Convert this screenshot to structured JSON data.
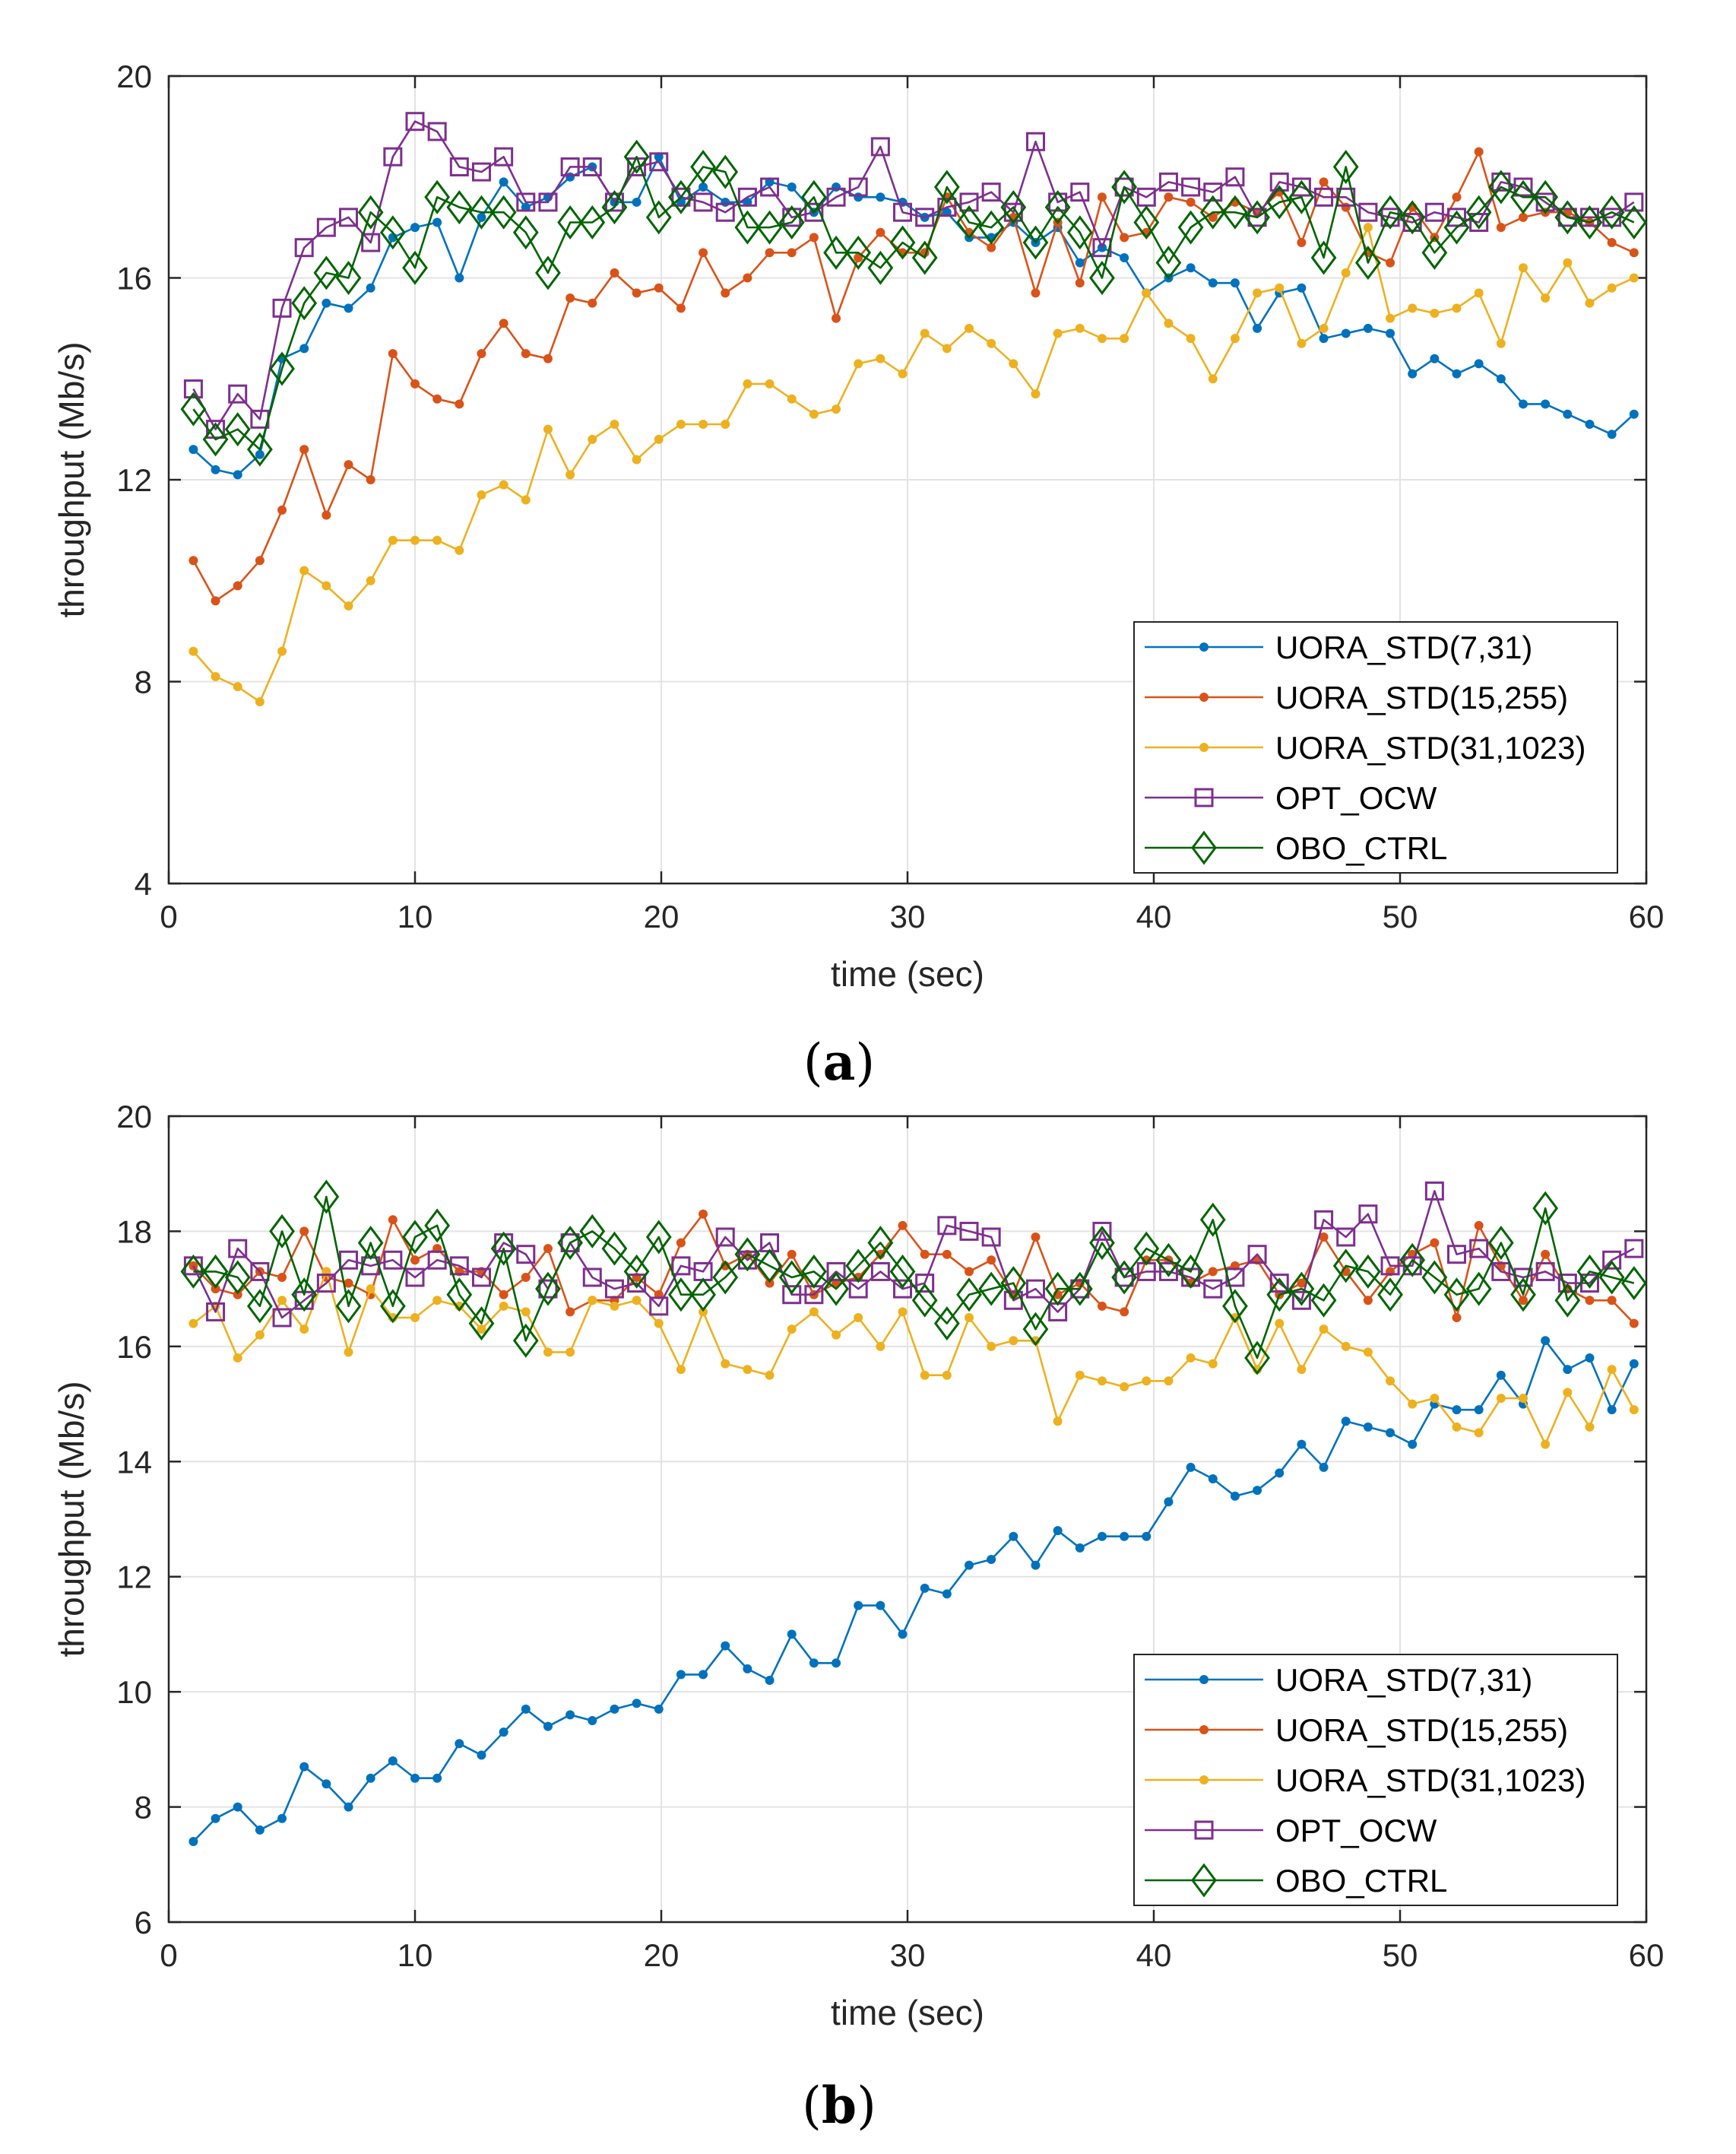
{
  "chart_data": [
    {
      "type": "line",
      "panel_label": "(a)",
      "panel_letter": "a",
      "xlabel": "time (sec)",
      "ylabel": "throughput (Mb/s)",
      "xlim": [
        0,
        60
      ],
      "ylim": [
        4,
        20
      ],
      "xticks": [
        "0",
        "10",
        "20",
        "30",
        "40",
        "50",
        "60"
      ],
      "yticks": [
        "4",
        "8",
        "12",
        "16",
        "20"
      ],
      "grid": true,
      "legend_position": "bottom-right",
      "x": [
        1,
        1.9,
        2.8,
        3.7,
        4.6,
        5.5,
        6.4,
        7.3,
        8.2,
        9.1,
        10,
        10.9,
        11.8,
        12.7,
        13.6,
        14.5,
        15.4,
        16.3,
        17.2,
        18.1,
        19,
        19.9,
        20.8,
        21.7,
        22.6,
        23.5,
        24.4,
        25.3,
        26.2,
        27.1,
        28,
        28.9,
        29.8,
        30.7,
        31.6,
        32.5,
        33.4,
        34.3,
        35.2,
        36.1,
        37,
        37.9,
        38.8,
        39.7,
        40.6,
        41.5,
        42.4,
        43.3,
        44.2,
        45.1,
        46,
        46.9,
        47.8,
        48.7,
        49.6,
        50.5,
        51.4,
        52.3,
        53.2,
        54.1,
        55,
        55.9,
        56.8,
        57.7,
        58.6,
        59.5
      ],
      "series": [
        {
          "name": "UORA_STD(7,31)",
          "color": "#0072bd",
          "marker": "dot",
          "values": [
            12.6,
            12.2,
            12.1,
            12.5,
            14.4,
            14.6,
            15.5,
            15.4,
            15.8,
            16.8,
            17.0,
            17.1,
            16.0,
            17.2,
            17.9,
            17.4,
            17.6,
            18.0,
            18.2,
            17.5,
            17.5,
            18.4,
            17.5,
            17.8,
            17.5,
            17.5,
            17.9,
            17.8,
            17.3,
            17.8,
            17.6,
            17.6,
            17.5,
            17.2,
            17.3,
            16.8,
            16.8,
            17.1,
            16.7,
            17.0,
            16.3,
            16.6,
            16.4,
            15.7,
            16.0,
            16.2,
            15.9,
            15.9,
            15.0,
            15.7,
            15.8,
            14.8,
            14.9,
            15.0,
            14.9,
            14.1,
            14.4,
            14.1,
            14.3,
            14.0,
            13.5,
            13.5,
            13.3,
            13.1,
            12.9,
            13.3
          ]
        },
        {
          "name": "UORA_STD(15,255)",
          "color": "#d95319",
          "marker": "dot",
          "values": [
            10.4,
            9.6,
            9.9,
            10.4,
            11.4,
            12.6,
            11.3,
            12.3,
            12.0,
            14.5,
            13.9,
            13.6,
            13.5,
            14.5,
            15.1,
            14.5,
            14.4,
            15.6,
            15.5,
            16.1,
            15.7,
            15.8,
            15.4,
            16.5,
            15.7,
            16.0,
            16.5,
            16.5,
            16.8,
            15.2,
            16.4,
            16.9,
            16.5,
            16.5,
            17.6,
            16.9,
            16.6,
            17.2,
            15.7,
            17.1,
            15.9,
            17.6,
            16.8,
            16.9,
            17.6,
            17.5,
            17.2,
            17.5,
            17.3,
            17.7,
            16.7,
            17.9,
            17.4,
            16.5,
            16.3,
            17.4,
            16.8,
            17.6,
            18.5,
            17.0,
            17.2,
            17.3,
            17.3,
            17.1,
            16.7,
            16.5
          ]
        },
        {
          "name": "UORA_STD(31,1023)",
          "color": "#edb120",
          "marker": "dot",
          "values": [
            8.6,
            8.1,
            7.9,
            7.6,
            8.6,
            10.2,
            9.9,
            9.5,
            10.0,
            10.8,
            10.8,
            10.8,
            10.6,
            11.7,
            11.9,
            11.6,
            13.0,
            12.1,
            12.8,
            13.1,
            12.4,
            12.8,
            13.1,
            13.1,
            13.1,
            13.9,
            13.9,
            13.6,
            13.3,
            13.4,
            14.3,
            14.4,
            14.1,
            14.9,
            14.6,
            15.0,
            14.7,
            14.3,
            13.7,
            14.9,
            15.0,
            14.8,
            14.8,
            15.7,
            15.1,
            14.8,
            14.0,
            14.8,
            15.7,
            15.8,
            14.7,
            15.0,
            16.1,
            17.0,
            15.2,
            15.4,
            15.3,
            15.4,
            15.7,
            14.7,
            16.2,
            15.6,
            16.3,
            15.5,
            15.8,
            16.0
          ]
        },
        {
          "name": "OPT_OCW",
          "color": "#7e2f8e",
          "marker": "square",
          "values": [
            13.8,
            13.0,
            13.7,
            13.2,
            15.4,
            16.6,
            17.0,
            17.2,
            16.7,
            18.4,
            19.1,
            18.9,
            18.2,
            18.1,
            18.4,
            17.5,
            17.5,
            18.2,
            18.2,
            17.5,
            18.2,
            18.3,
            17.6,
            17.5,
            17.3,
            17.6,
            17.8,
            17.2,
            17.3,
            17.6,
            17.8,
            18.6,
            17.3,
            17.2,
            17.4,
            17.5,
            17.7,
            17.3,
            18.7,
            17.5,
            17.7,
            16.6,
            17.8,
            17.6,
            17.9,
            17.8,
            17.7,
            18.0,
            17.2,
            17.9,
            17.8,
            17.6,
            17.6,
            17.3,
            17.2,
            17.1,
            17.3,
            17.2,
            17.1,
            17.9,
            17.8,
            17.5,
            17.2,
            17.2,
            17.2,
            17.5
          ]
        },
        {
          "name": "OBO_CTRL",
          "color": "#006400",
          "marker": "diamond",
          "values": [
            13.4,
            12.8,
            13.0,
            12.6,
            14.2,
            15.5,
            16.1,
            16.0,
            17.3,
            16.9,
            16.2,
            17.6,
            17.4,
            17.3,
            17.3,
            16.9,
            16.1,
            17.1,
            17.1,
            17.4,
            18.4,
            17.2,
            17.6,
            18.2,
            18.1,
            17.0,
            17.0,
            17.1,
            17.6,
            16.5,
            16.5,
            16.2,
            16.7,
            16.4,
            17.8,
            17.1,
            17.0,
            17.4,
            16.7,
            17.4,
            16.9,
            16.0,
            17.8,
            17.1,
            16.3,
            17.0,
            17.3,
            17.3,
            17.2,
            17.5,
            17.6,
            16.4,
            18.2,
            16.3,
            17.3,
            17.2,
            16.5,
            17.0,
            17.3,
            17.8,
            17.6,
            17.6,
            17.2,
            17.1,
            17.3,
            17.1
          ]
        }
      ],
      "legend": [
        "UORA_STD(7,31)",
        "UORA_STD(15,255)",
        "UORA_STD(31,1023)",
        "OPT_OCW",
        "OBO_CTRL"
      ]
    },
    {
      "type": "line",
      "panel_label": "(b)",
      "panel_letter": "b",
      "xlabel": "time (sec)",
      "ylabel": "throughput (Mb/s)",
      "xlim": [
        0,
        60
      ],
      "ylim": [
        6,
        20
      ],
      "xticks": [
        "0",
        "10",
        "20",
        "30",
        "40",
        "50",
        "60"
      ],
      "yticks": [
        "6",
        "8",
        "10",
        "12",
        "14",
        "16",
        "18",
        "20"
      ],
      "grid": true,
      "legend_position": "bottom-right",
      "x": [
        1,
        1.9,
        2.8,
        3.7,
        4.6,
        5.5,
        6.4,
        7.3,
        8.2,
        9.1,
        10,
        10.9,
        11.8,
        12.7,
        13.6,
        14.5,
        15.4,
        16.3,
        17.2,
        18.1,
        19,
        19.9,
        20.8,
        21.7,
        22.6,
        23.5,
        24.4,
        25.3,
        26.2,
        27.1,
        28,
        28.9,
        29.8,
        30.7,
        31.6,
        32.5,
        33.4,
        34.3,
        35.2,
        36.1,
        37,
        37.9,
        38.8,
        39.7,
        40.6,
        41.5,
        42.4,
        43.3,
        44.2,
        45.1,
        46,
        46.9,
        47.8,
        48.7,
        49.6,
        50.5,
        51.4,
        52.3,
        53.2,
        54.1,
        55,
        55.9,
        56.8,
        57.7,
        58.6,
        59.5
      ],
      "series": [
        {
          "name": "UORA_STD(7,31)",
          "color": "#0072bd",
          "marker": "dot",
          "values": [
            7.4,
            7.8,
            8.0,
            7.6,
            7.8,
            8.7,
            8.4,
            8.0,
            8.5,
            8.8,
            8.5,
            8.5,
            9.1,
            8.9,
            9.3,
            9.7,
            9.4,
            9.6,
            9.5,
            9.7,
            9.8,
            9.7,
            10.3,
            10.3,
            10.8,
            10.4,
            10.2,
            11.0,
            10.5,
            10.5,
            11.5,
            11.5,
            11.0,
            11.8,
            11.7,
            12.2,
            12.3,
            12.7,
            12.2,
            12.8,
            12.5,
            12.7,
            12.7,
            12.7,
            13.3,
            13.9,
            13.7,
            13.4,
            13.5,
            13.8,
            14.3,
            13.9,
            14.7,
            14.6,
            14.5,
            14.3,
            15.0,
            14.9,
            14.9,
            15.5,
            15.0,
            16.1,
            15.6,
            15.8,
            14.9,
            15.7
          ]
        },
        {
          "name": "UORA_STD(15,255)",
          "color": "#d95319",
          "marker": "dot",
          "values": [
            17.4,
            17.0,
            16.9,
            17.3,
            17.2,
            18.0,
            17.2,
            17.1,
            16.9,
            18.2,
            17.5,
            17.7,
            17.3,
            17.3,
            16.9,
            17.2,
            17.7,
            16.6,
            16.8,
            16.8,
            17.2,
            16.9,
            17.8,
            18.3,
            17.4,
            17.6,
            17.1,
            17.6,
            16.9,
            17.1,
            17.2,
            17.6,
            18.1,
            17.6,
            17.6,
            17.3,
            17.5,
            16.9,
            17.9,
            16.9,
            17.1,
            16.7,
            16.6,
            17.5,
            17.5,
            17.1,
            17.3,
            17.4,
            17.5,
            16.9,
            17.1,
            17.9,
            17.3,
            16.8,
            17.3,
            17.6,
            17.8,
            16.5,
            18.1,
            17.4,
            16.8,
            17.6,
            17.0,
            16.8,
            16.8,
            16.4
          ]
        },
        {
          "name": "UORA_STD(31,1023)",
          "color": "#edb120",
          "marker": "dot",
          "values": [
            16.4,
            16.7,
            15.8,
            16.2,
            16.8,
            16.3,
            17.3,
            15.9,
            17.0,
            16.5,
            16.5,
            16.8,
            16.7,
            16.3,
            16.7,
            16.6,
            15.9,
            15.9,
            16.8,
            16.7,
            16.8,
            16.4,
            15.6,
            16.6,
            15.7,
            15.6,
            15.5,
            16.3,
            16.6,
            16.2,
            16.5,
            16.0,
            16.6,
            15.5,
            15.5,
            16.5,
            16.0,
            16.1,
            16.1,
            14.7,
            15.5,
            15.4,
            15.3,
            15.4,
            15.4,
            15.8,
            15.7,
            16.5,
            15.6,
            16.4,
            15.6,
            16.3,
            16.0,
            15.9,
            15.4,
            15.0,
            15.1,
            14.6,
            14.5,
            15.1,
            15.1,
            14.3,
            15.2,
            14.6,
            15.6,
            14.9
          ]
        },
        {
          "name": "OPT_OCW",
          "color": "#7e2f8e",
          "marker": "square",
          "values": [
            17.4,
            16.6,
            17.7,
            17.3,
            16.5,
            16.8,
            17.1,
            17.5,
            17.4,
            17.5,
            17.2,
            17.5,
            17.4,
            17.2,
            17.8,
            17.6,
            17.0,
            17.8,
            17.2,
            17.0,
            17.1,
            16.7,
            17.4,
            17.3,
            17.9,
            17.5,
            17.8,
            16.9,
            16.9,
            17.3,
            17.0,
            17.3,
            17.0,
            17.1,
            18.1,
            18.0,
            17.9,
            16.8,
            17.0,
            16.6,
            17.0,
            18.0,
            17.2,
            17.3,
            17.3,
            17.2,
            17.0,
            17.2,
            17.6,
            17.1,
            16.8,
            18.2,
            17.9,
            18.3,
            17.4,
            17.4,
            18.7,
            17.6,
            17.7,
            17.3,
            17.2,
            17.3,
            17.1,
            17.1,
            17.5,
            17.7
          ]
        },
        {
          "name": "OBO_CTRL",
          "color": "#006400",
          "marker": "diamond",
          "values": [
            17.3,
            17.3,
            17.2,
            16.7,
            18.0,
            16.9,
            18.6,
            16.7,
            17.8,
            16.7,
            17.9,
            18.1,
            16.9,
            16.4,
            17.7,
            16.1,
            17.0,
            17.8,
            18.0,
            17.7,
            17.3,
            17.9,
            16.9,
            16.9,
            17.2,
            17.6,
            17.4,
            17.2,
            17.3,
            17.0,
            17.4,
            17.8,
            17.3,
            16.8,
            16.4,
            16.9,
            17.0,
            17.1,
            16.3,
            17.0,
            17.0,
            17.8,
            17.2,
            17.7,
            17.5,
            17.3,
            18.2,
            16.7,
            15.8,
            16.9,
            17.0,
            16.8,
            17.4,
            17.3,
            16.9,
            17.5,
            17.2,
            16.9,
            17.0,
            17.8,
            16.9,
            18.4,
            16.8,
            17.3,
            17.2,
            17.1
          ]
        }
      ],
      "legend": [
        "UORA_STD(7,31)",
        "UORA_STD(15,255)",
        "UORA_STD(31,1023)",
        "OPT_OCW",
        "OBO_CTRL"
      ]
    }
  ]
}
